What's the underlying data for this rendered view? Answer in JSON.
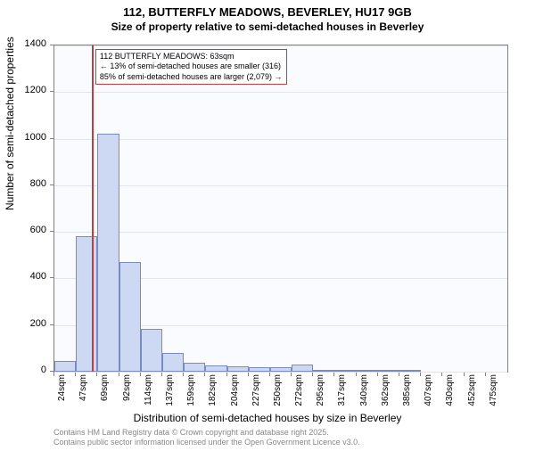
{
  "titles": {
    "line1": "112, BUTTERFLY MEADOWS, BEVERLEY, HU17 9GB",
    "line2": "Size of property relative to semi-detached houses in Beverley"
  },
  "ylabel": "Number of semi-detached properties",
  "xlabel": "Distribution of semi-detached houses by size in Beverley",
  "chart": {
    "type": "histogram",
    "background_color": "#fafbff",
    "grid_color": "#e0e4f0",
    "bar_fill": "#cdd8f2",
    "bar_border": "#7a8bc4",
    "marker_color": "#c04040",
    "ylim": [
      0,
      1400
    ],
    "yticks": [
      0,
      200,
      400,
      600,
      800,
      1000,
      1200,
      1400
    ],
    "x_start": 24,
    "x_step": 22.5,
    "n_bins": 21,
    "x_tick_labels": [
      "24sqm",
      "47sqm",
      "69sqm",
      "92sqm",
      "114sqm",
      "137sqm",
      "159sqm",
      "182sqm",
      "204sqm",
      "227sqm",
      "250sqm",
      "272sqm",
      "295sqm",
      "317sqm",
      "340sqm",
      "362sqm",
      "385sqm",
      "407sqm",
      "430sqm",
      "452sqm",
      "475sqm"
    ],
    "values": [
      45,
      580,
      1020,
      470,
      185,
      80,
      40,
      27,
      22,
      20,
      18,
      32,
      3,
      2,
      1,
      1,
      1,
      0,
      0,
      0,
      0
    ],
    "marker_value": 63,
    "annotation": {
      "line1": "112 BUTTERFLY MEADOWS: 63sqm",
      "line2": "← 13% of semi-detached houses are smaller (316)",
      "line3": "85% of semi-detached houses are larger (2,079) →"
    }
  },
  "footer": {
    "line1": "Contains HM Land Registry data © Crown copyright and database right 2025.",
    "line2": "Contains public sector information licensed under the Open Government Licence v3.0."
  },
  "axis_fontsize": 11,
  "label_fontsize": 12,
  "title_fontsize": 13
}
